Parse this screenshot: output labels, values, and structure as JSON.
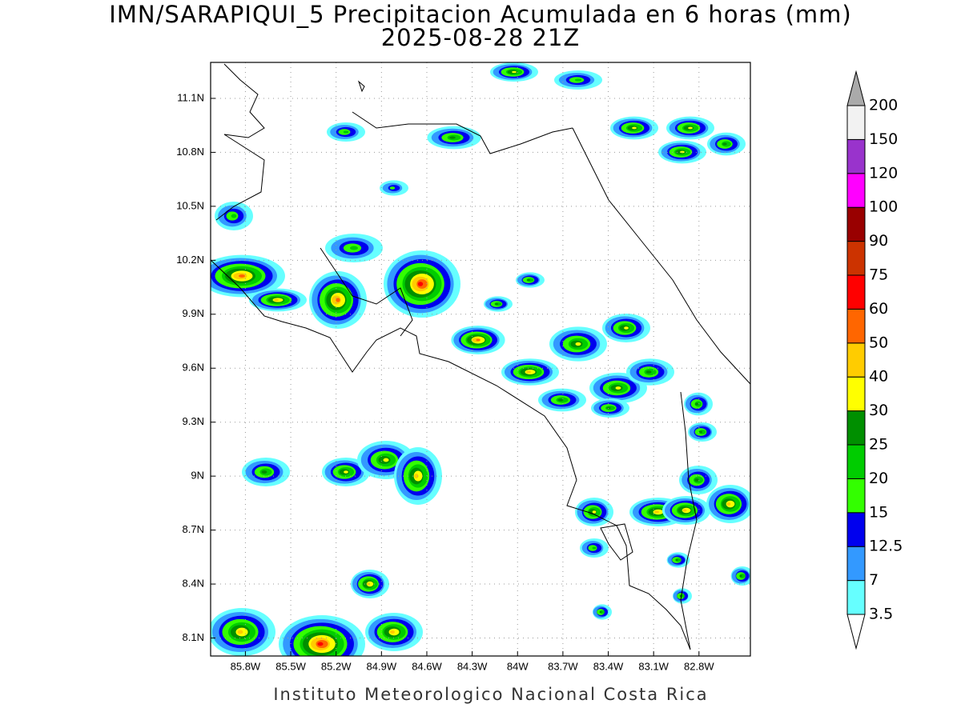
{
  "chart_data": {
    "type": "contour-map",
    "title": "IMN/SARAPIQUI_5 Precipitacion Acumulada en 6 horas (mm)",
    "subtitle": "2025-08-28 21Z",
    "footer": "Instituto Meteorologico Nacional Costa Rica",
    "xlim": [
      -86.03,
      -82.46
    ],
    "ylim": [
      8.0,
      11.3
    ],
    "xticks": [
      {
        "value": -85.8,
        "label": "85.8W"
      },
      {
        "value": -85.5,
        "label": "85.5W"
      },
      {
        "value": -85.2,
        "label": "85.2W"
      },
      {
        "value": -84.9,
        "label": "84.9W"
      },
      {
        "value": -84.6,
        "label": "84.6W"
      },
      {
        "value": -84.3,
        "label": "84.3W"
      },
      {
        "value": -84.0,
        "label": "84W"
      },
      {
        "value": -83.7,
        "label": "83.7W"
      },
      {
        "value": -83.4,
        "label": "83.4W"
      },
      {
        "value": -83.1,
        "label": "83.1W"
      },
      {
        "value": -82.8,
        "label": "82.8W"
      }
    ],
    "yticks": [
      {
        "value": 8.1,
        "label": "8.1N"
      },
      {
        "value": 8.4,
        "label": "8.4N"
      },
      {
        "value": 8.7,
        "label": "8.7N"
      },
      {
        "value": 9.0,
        "label": "9N"
      },
      {
        "value": 9.3,
        "label": "9.3N"
      },
      {
        "value": 9.6,
        "label": "9.6N"
      },
      {
        "value": 9.9,
        "label": "9.9N"
      },
      {
        "value": 10.2,
        "label": "10.2N"
      },
      {
        "value": 10.5,
        "label": "10.5N"
      },
      {
        "value": 10.8,
        "label": "10.8N"
      },
      {
        "value": 11.1,
        "label": "11.1N"
      }
    ],
    "grid": true,
    "colorbar": {
      "levels": [
        3.5,
        7,
        12.5,
        15,
        20,
        25,
        30,
        40,
        50,
        60,
        75,
        90,
        100,
        120,
        150,
        200
      ],
      "colors": [
        "#ffffff",
        "#66ffff",
        "#3399ff",
        "#0000ee",
        "#33ff00",
        "#00cc00",
        "#008f00",
        "#ffff00",
        "#ffcc00",
        "#ff6600",
        "#ff0000",
        "#cc3300",
        "#990000",
        "#ff00ff",
        "#9933cc",
        "#f2f2f2",
        "#aaaaaa"
      ]
    }
  }
}
